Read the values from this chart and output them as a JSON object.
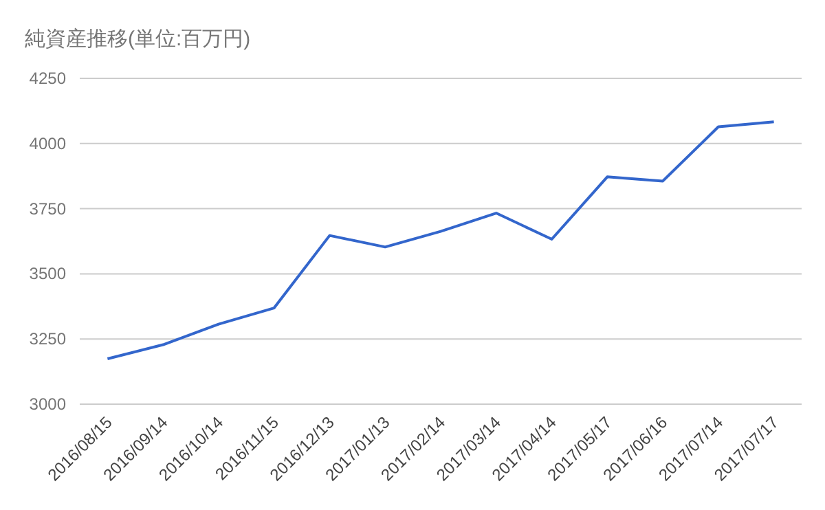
{
  "chart_data": {
    "type": "line",
    "title": "純資産推移(単位:百万円)",
    "categories": [
      "2016/08/15",
      "2016/09/14",
      "2016/10/14",
      "2016/11/15",
      "2016/12/13",
      "2017/01/13",
      "2017/02/14",
      "2017/03/14",
      "2017/04/14",
      "2017/05/17",
      "2017/06/16",
      "2017/07/14",
      "2017/07/17"
    ],
    "series": [
      {
        "color": "#3366cc",
        "values": [
          3174,
          3228,
          3307,
          3369,
          3647,
          3603,
          3663,
          3733,
          3633,
          3872,
          3856,
          4064,
          4083
        ]
      }
    ],
    "ylim": [
      3000,
      4250
    ],
    "yticks": [
      3000,
      3250,
      3500,
      3750,
      4000,
      4250
    ],
    "grid": "y"
  }
}
